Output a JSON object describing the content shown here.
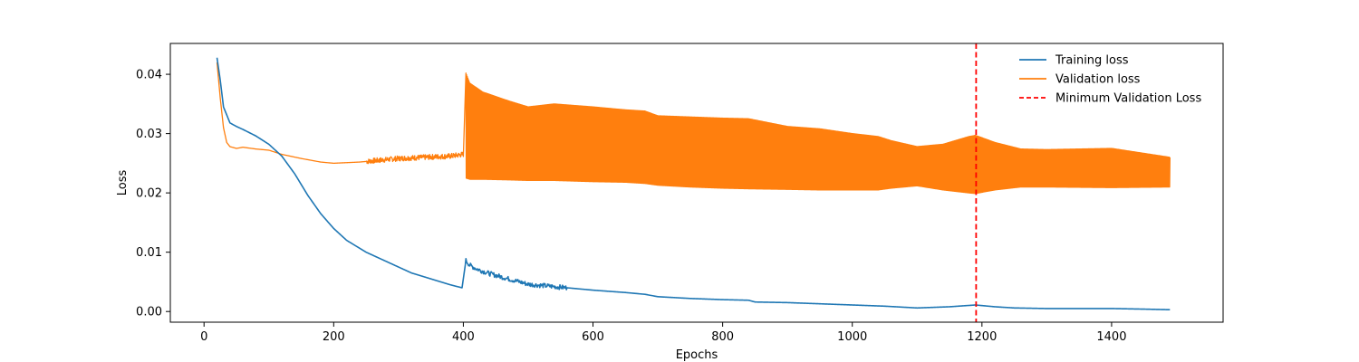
{
  "chart_data": {
    "type": "line",
    "title": "",
    "xlabel": "Epochs",
    "ylabel": "Loss",
    "xlim": [
      -52,
      1572
    ],
    "ylim": [
      -0.0018,
      0.0452
    ],
    "x_ticks": [
      0,
      200,
      400,
      600,
      800,
      1000,
      1200,
      1400
    ],
    "x_tick_labels": [
      "0",
      "200",
      "400",
      "600",
      "800",
      "1000",
      "1200",
      "1400"
    ],
    "y_ticks": [
      0.0,
      0.01,
      0.02,
      0.03,
      0.04
    ],
    "y_tick_labels": [
      "0.00",
      "0.01",
      "0.02",
      "0.03",
      "0.04"
    ],
    "grid": false,
    "legend_position": "top-right",
    "colors": {
      "training": "#1f77b4",
      "validation": "#ff7f0e",
      "min_line": "#ff0000"
    },
    "series": [
      {
        "name": "Training loss",
        "x": [
          20,
          25,
          30,
          40,
          50,
          60,
          80,
          100,
          120,
          140,
          160,
          180,
          200,
          220,
          250,
          280,
          300,
          320,
          350,
          380,
          398,
          404,
          410,
          420,
          440,
          460,
          480,
          500,
          550,
          600,
          650,
          680,
          700,
          750,
          800,
          840,
          850,
          900,
          950,
          1000,
          1050,
          1100,
          1150,
          1190,
          1220,
          1250,
          1300,
          1350,
          1400,
          1450,
          1490
        ],
        "values": [
          0.0428,
          0.039,
          0.0345,
          0.0318,
          0.0312,
          0.0307,
          0.0296,
          0.0282,
          0.0262,
          0.0232,
          0.0196,
          0.0165,
          0.014,
          0.012,
          0.01,
          0.0085,
          0.0075,
          0.0065,
          0.0055,
          0.0045,
          0.004,
          0.0086,
          0.0078,
          0.0072,
          0.0064,
          0.0058,
          0.0052,
          0.0046,
          0.0041,
          0.0036,
          0.0032,
          0.0029,
          0.0025,
          0.0022,
          0.002,
          0.0019,
          0.0016,
          0.0015,
          0.0013,
          0.0011,
          0.0009,
          0.0006,
          0.0008,
          0.0011,
          0.0008,
          0.0006,
          0.0005,
          0.0005,
          0.0005,
          0.0004,
          0.0003
        ]
      },
      {
        "name": "Validation loss",
        "x": [
          20,
          25,
          30,
          35,
          40,
          50,
          60,
          80,
          100,
          120,
          150,
          180,
          200,
          240,
          280,
          300,
          340,
          380,
          400
        ],
        "values": [
          0.042,
          0.036,
          0.031,
          0.0285,
          0.0278,
          0.0275,
          0.0277,
          0.0274,
          0.0272,
          0.0265,
          0.0258,
          0.0252,
          0.025,
          0.0252,
          0.0256,
          0.0258,
          0.026,
          0.0262,
          0.0265
        ],
        "oscillation_band": {
          "x": [
            404,
            410,
            430,
            470,
            500,
            540,
            600,
            650,
            680,
            700,
            750,
            800,
            840,
            900,
            950,
            1000,
            1040,
            1060,
            1100,
            1140,
            1180,
            1190,
            1220,
            1260,
            1300,
            1400,
            1490
          ],
          "upper": [
            0.0402,
            0.0385,
            0.037,
            0.0355,
            0.0345,
            0.035,
            0.0345,
            0.034,
            0.0338,
            0.033,
            0.0328,
            0.0326,
            0.0325,
            0.0312,
            0.0308,
            0.03,
            0.0295,
            0.0288,
            0.0278,
            0.0282,
            0.0295,
            0.0297,
            0.0285,
            0.0274,
            0.0273,
            0.0275,
            0.026
          ],
          "lower": [
            0.0225,
            0.0223,
            0.0223,
            0.0222,
            0.0221,
            0.0221,
            0.0219,
            0.0218,
            0.0216,
            0.0213,
            0.021,
            0.0208,
            0.0207,
            0.0206,
            0.0205,
            0.0205,
            0.0205,
            0.0208,
            0.0212,
            0.0205,
            0.02,
            0.0199,
            0.0205,
            0.021,
            0.021,
            0.0209,
            0.021
          ]
        }
      }
    ],
    "vertical_line": {
      "name": "Minimum Validation Loss",
      "x": 1191,
      "style": "dashed"
    }
  }
}
